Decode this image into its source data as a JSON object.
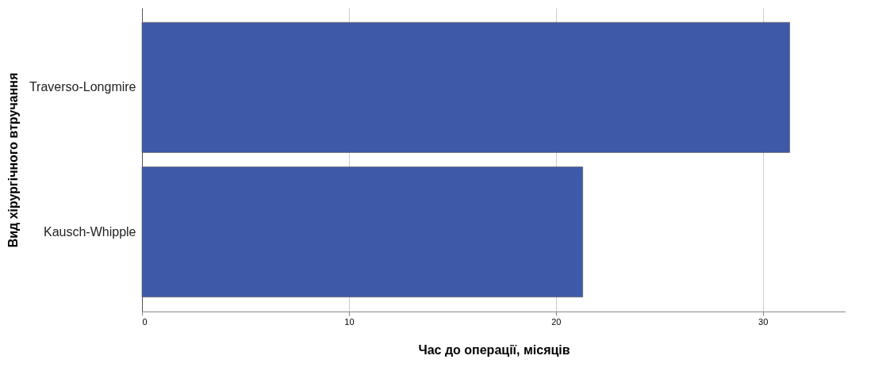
{
  "chart_data": {
    "type": "bar",
    "orientation": "horizontal",
    "categories": [
      "Traverso-Longmire",
      "Kausch-Whipple"
    ],
    "values": [
      31.3,
      21.3
    ],
    "color": "#3e59a7",
    "xlim": [
      0,
      34
    ],
    "xticks": [
      0,
      10,
      20,
      30
    ],
    "grid": "x",
    "xlabel": "Час до операції, місяців",
    "ylabel": "Вид хірургічного втручання"
  }
}
